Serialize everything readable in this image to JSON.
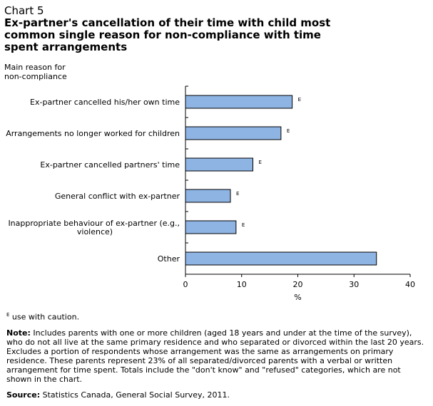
{
  "header": {
    "chart_number": "Chart 5",
    "title": "Ex-partner's cancellation of their time with child most common single reason for non-compliance with time spent arrangements"
  },
  "chart_data": {
    "type": "bar",
    "orientation": "horizontal",
    "ylabel": "Main reason for non-compliance",
    "xlabel": "%",
    "xlim": [
      0,
      40
    ],
    "xticks": [
      "0",
      "10",
      "20",
      "30",
      "40"
    ],
    "categories": [
      "Ex-partner cancelled his/her own time",
      "Arrangements no longer worked for children",
      "Ex-partner cancelled partners' time",
      "General conflict with ex-partner",
      "Inappropriate behaviour of ex-partner (e.g., violence)",
      "Other"
    ],
    "category_lines": [
      [
        "Ex-partner cancelled his/her own time"
      ],
      [
        "Arrangements no longer worked for children"
      ],
      [
        "Ex-partner cancelled partners' time"
      ],
      [
        "General conflict with ex-partner"
      ],
      [
        "Inappropriate behaviour of ex-partner (e.g.,",
        "violence)"
      ],
      [
        "Other"
      ]
    ],
    "values": [
      19,
      17,
      12,
      8,
      9,
      34
    ],
    "flags": [
      "E",
      "E",
      "E",
      "E",
      "E",
      ""
    ],
    "bar_color": "#8eb4e3",
    "bar_border": "#000000",
    "grid": false,
    "legend": "none"
  },
  "footnotes": {
    "flag_symbol": "E",
    "flag_text": " use with caution.",
    "note_label": "Note:",
    "note_text": " Includes parents with one or more children (aged 18 years and under at the time of the survey), who do not all live at the same primary residence and who separated or divorced within the last 20 years. Excludes a portion of respondents whose arrangement was the same as arrangements on primary residence. These parents represent 23% of all separated/divorced parents with a verbal or written arrangement for time spent. Totals include the \"don't know\" and \"refused\" categories, which are not shown in the chart.",
    "source_label": "Source:",
    "source_text": " Statistics Canada, General Social Survey, 2011."
  }
}
